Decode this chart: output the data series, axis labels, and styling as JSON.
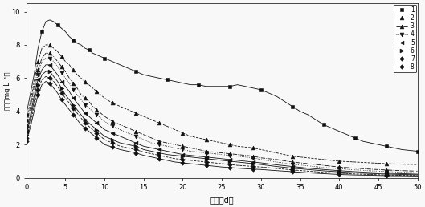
{
  "title": "",
  "xlabel": "时间（d）",
  "ylabel": "浓度（mg·L⁻¹）",
  "xlim": [
    0,
    50
  ],
  "ylim": [
    0,
    10.5
  ],
  "xticks": [
    0,
    5,
    10,
    15,
    20,
    25,
    30,
    35,
    40,
    45,
    50
  ],
  "yticks": [
    0,
    2,
    4,
    6,
    8,
    10
  ],
  "background": "#f8f8f8",
  "series": [
    {
      "label": "1",
      "marker": "s",
      "linestyle": "-",
      "color": "#111111",
      "markersize": 3.5,
      "linewidth": 0.6,
      "x": [
        0,
        0.5,
        1,
        1.5,
        2,
        2.5,
        3,
        3.5,
        4,
        4.5,
        5,
        5.5,
        6,
        6.5,
        7,
        7.5,
        8,
        8.5,
        9,
        9.5,
        10,
        11,
        12,
        13,
        14,
        15,
        16,
        17,
        18,
        19,
        20,
        21,
        22,
        23,
        24,
        25,
        26,
        27,
        28,
        29,
        30,
        31,
        32,
        33,
        34,
        35,
        36,
        37,
        38,
        39,
        40,
        41,
        42,
        43,
        44,
        45,
        46,
        47,
        48,
        49,
        50
      ],
      "y": [
        3.8,
        5.0,
        6.2,
        7.8,
        8.8,
        9.4,
        9.5,
        9.4,
        9.2,
        9.0,
        8.8,
        8.5,
        8.3,
        8.1,
        8.0,
        7.8,
        7.7,
        7.5,
        7.4,
        7.3,
        7.2,
        7.0,
        6.8,
        6.6,
        6.4,
        6.2,
        6.1,
        6.0,
        5.9,
        5.8,
        5.7,
        5.6,
        5.6,
        5.5,
        5.5,
        5.5,
        5.5,
        5.6,
        5.5,
        5.4,
        5.3,
        5.1,
        4.9,
        4.6,
        4.3,
        4.0,
        3.8,
        3.5,
        3.2,
        3.0,
        2.8,
        2.6,
        2.4,
        2.2,
        2.1,
        2.0,
        1.9,
        1.8,
        1.7,
        1.65,
        1.6
      ]
    },
    {
      "label": "2",
      "marker": "^",
      "linestyle": "--",
      "color": "#111111",
      "markersize": 3.5,
      "linewidth": 0.6,
      "x": [
        0,
        0.5,
        1,
        1.5,
        2,
        2.5,
        3,
        3.5,
        4,
        4.5,
        5,
        5.5,
        6,
        6.5,
        7,
        7.5,
        8,
        8.5,
        9,
        9.5,
        10,
        11,
        12,
        13,
        14,
        15,
        16,
        17,
        18,
        19,
        20,
        21,
        22,
        23,
        24,
        25,
        26,
        27,
        28,
        29,
        30,
        32,
        34,
        36,
        38,
        40,
        42,
        44,
        46,
        48,
        50
      ],
      "y": [
        3.5,
        4.5,
        5.8,
        7.0,
        7.8,
        8.0,
        8.0,
        7.8,
        7.6,
        7.3,
        7.0,
        6.8,
        6.5,
        6.2,
        6.0,
        5.8,
        5.6,
        5.4,
        5.2,
        5.0,
        4.8,
        4.5,
        4.3,
        4.1,
        3.9,
        3.7,
        3.5,
        3.3,
        3.1,
        2.9,
        2.7,
        2.5,
        2.4,
        2.3,
        2.2,
        2.1,
        2.0,
        1.9,
        1.85,
        1.8,
        1.7,
        1.5,
        1.3,
        1.2,
        1.1,
        1.0,
        0.95,
        0.9,
        0.85,
        0.82,
        0.8
      ]
    },
    {
      "label": "3",
      "marker": "^",
      "linestyle": "-.",
      "color": "#111111",
      "markersize": 3.5,
      "linewidth": 0.6,
      "x": [
        0,
        0.5,
        1,
        1.5,
        2,
        2.5,
        3,
        3.5,
        4,
        4.5,
        5,
        5.5,
        6,
        6.5,
        7,
        7.5,
        8,
        8.5,
        9,
        9.5,
        10,
        11,
        12,
        13,
        14,
        15,
        16,
        17,
        18,
        19,
        20,
        21,
        22,
        23,
        24,
        25,
        26,
        27,
        28,
        29,
        30,
        32,
        34,
        36,
        38,
        40,
        42,
        44,
        46,
        48,
        50
      ],
      "y": [
        3.2,
        4.2,
        5.5,
        6.5,
        7.2,
        7.5,
        7.5,
        7.3,
        7.0,
        6.7,
        6.4,
        6.0,
        5.7,
        5.4,
        5.0,
        4.8,
        4.6,
        4.3,
        4.1,
        3.9,
        3.7,
        3.4,
        3.2,
        3.0,
        2.8,
        2.6,
        2.4,
        2.2,
        2.1,
        2.0,
        1.9,
        1.8,
        1.7,
        1.6,
        1.55,
        1.5,
        1.45,
        1.4,
        1.35,
        1.3,
        1.2,
        1.1,
        0.95,
        0.85,
        0.75,
        0.65,
        0.58,
        0.52,
        0.47,
        0.43,
        0.4
      ]
    },
    {
      "label": "4",
      "marker": "v",
      "linestyle": ":",
      "color": "#111111",
      "markersize": 3.5,
      "linewidth": 0.6,
      "x": [
        0,
        0.5,
        1,
        1.5,
        2,
        2.5,
        3,
        3.5,
        4,
        4.5,
        5,
        5.5,
        6,
        6.5,
        7,
        7.5,
        8,
        8.5,
        9,
        9.5,
        10,
        11,
        12,
        13,
        14,
        15,
        16,
        17,
        18,
        19,
        20,
        21,
        22,
        23,
        24,
        25,
        26,
        27,
        28,
        29,
        30,
        32,
        34,
        36,
        38,
        40,
        42,
        44,
        46,
        48,
        50
      ],
      "y": [
        3.0,
        4.0,
        5.2,
        6.2,
        7.0,
        7.2,
        7.2,
        7.0,
        6.7,
        6.3,
        6.0,
        5.7,
        5.3,
        5.0,
        4.7,
        4.4,
        4.2,
        4.0,
        3.8,
        3.6,
        3.4,
        3.1,
        2.9,
        2.7,
        2.5,
        2.3,
        2.1,
        2.0,
        1.9,
        1.8,
        1.7,
        1.6,
        1.55,
        1.5,
        1.45,
        1.4,
        1.35,
        1.3,
        1.25,
        1.2,
        1.1,
        0.95,
        0.82,
        0.72,
        0.62,
        0.55,
        0.48,
        0.42,
        0.38,
        0.34,
        0.3
      ]
    },
    {
      "label": "5",
      "marker": "<",
      "linestyle": "-",
      "color": "#111111",
      "markersize": 3.5,
      "linewidth": 0.6,
      "x": [
        0,
        0.5,
        1,
        1.5,
        2,
        2.5,
        3,
        3.5,
        4,
        4.5,
        5,
        5.5,
        6,
        6.5,
        7,
        7.5,
        8,
        8.5,
        9,
        9.5,
        10,
        11,
        12,
        13,
        14,
        15,
        16,
        17,
        18,
        19,
        20,
        21,
        22,
        23,
        24,
        25,
        26,
        27,
        28,
        29,
        30,
        32,
        34,
        36,
        38,
        40,
        42,
        44,
        46,
        48,
        50
      ],
      "y": [
        2.8,
        3.7,
        4.9,
        5.9,
        6.5,
        6.8,
        6.8,
        6.5,
        6.2,
        5.8,
        5.5,
        5.2,
        4.8,
        4.5,
        4.2,
        3.9,
        3.7,
        3.5,
        3.3,
        3.1,
        2.9,
        2.7,
        2.5,
        2.3,
        2.1,
        1.9,
        1.8,
        1.7,
        1.6,
        1.5,
        1.4,
        1.35,
        1.3,
        1.25,
        1.2,
        1.15,
        1.1,
        1.05,
        1.0,
        0.95,
        0.9,
        0.78,
        0.68,
        0.58,
        0.5,
        0.43,
        0.37,
        0.32,
        0.28,
        0.25,
        0.22
      ]
    },
    {
      "label": "6",
      "marker": ">",
      "linestyle": "-",
      "color": "#111111",
      "markersize": 3.5,
      "linewidth": 0.6,
      "x": [
        0,
        0.5,
        1,
        1.5,
        2,
        2.5,
        3,
        3.5,
        4,
        4.5,
        5,
        5.5,
        6,
        6.5,
        7,
        7.5,
        8,
        8.5,
        9,
        9.5,
        10,
        11,
        12,
        13,
        14,
        15,
        16,
        17,
        18,
        19,
        20,
        21,
        22,
        23,
        24,
        25,
        26,
        27,
        28,
        29,
        30,
        32,
        34,
        36,
        38,
        40,
        42,
        44,
        46,
        48,
        50
      ],
      "y": [
        2.6,
        3.5,
        4.6,
        5.6,
        6.2,
        6.4,
        6.4,
        6.1,
        5.8,
        5.4,
        5.0,
        4.7,
        4.4,
        4.1,
        3.8,
        3.5,
        3.3,
        3.1,
        2.9,
        2.7,
        2.5,
        2.3,
        2.1,
        2.0,
        1.9,
        1.7,
        1.6,
        1.5,
        1.4,
        1.35,
        1.3,
        1.25,
        1.2,
        1.15,
        1.1,
        1.05,
        1.0,
        0.95,
        0.9,
        0.85,
        0.8,
        0.68,
        0.58,
        0.5,
        0.42,
        0.36,
        0.3,
        0.26,
        0.23,
        0.2,
        0.18
      ]
    },
    {
      "label": "7",
      "marker": "D",
      "linestyle": "--",
      "color": "#111111",
      "markersize": 2.8,
      "linewidth": 0.6,
      "x": [
        0,
        0.5,
        1,
        1.5,
        2,
        2.5,
        3,
        3.5,
        4,
        4.5,
        5,
        5.5,
        6,
        6.5,
        7,
        7.5,
        8,
        8.5,
        9,
        9.5,
        10,
        11,
        12,
        13,
        14,
        15,
        16,
        17,
        18,
        19,
        20,
        21,
        22,
        23,
        24,
        25,
        26,
        27,
        28,
        29,
        30,
        32,
        34,
        36,
        38,
        40,
        42,
        44,
        46,
        48,
        50
      ],
      "y": [
        2.4,
        3.2,
        4.3,
        5.3,
        5.9,
        6.1,
        6.0,
        5.8,
        5.5,
        5.1,
        4.8,
        4.5,
        4.2,
        3.9,
        3.6,
        3.3,
        3.1,
        2.9,
        2.7,
        2.5,
        2.3,
        2.1,
        1.9,
        1.8,
        1.7,
        1.55,
        1.45,
        1.35,
        1.25,
        1.15,
        1.1,
        1.05,
        1.0,
        0.95,
        0.9,
        0.85,
        0.8,
        0.75,
        0.72,
        0.68,
        0.65,
        0.56,
        0.48,
        0.4,
        0.33,
        0.28,
        0.23,
        0.2,
        0.17,
        0.15,
        0.14
      ]
    },
    {
      "label": "8",
      "marker": "D",
      "linestyle": "-",
      "color": "#111111",
      "markersize": 2.8,
      "linewidth": 0.6,
      "x": [
        0,
        0.5,
        1,
        1.5,
        2,
        2.5,
        3,
        3.5,
        4,
        4.5,
        5,
        5.5,
        6,
        6.5,
        7,
        7.5,
        8,
        8.5,
        9,
        9.5,
        10,
        11,
        12,
        13,
        14,
        15,
        16,
        17,
        18,
        19,
        20,
        21,
        22,
        23,
        24,
        25,
        26,
        27,
        28,
        29,
        30,
        32,
        34,
        36,
        38,
        40,
        42,
        44,
        46,
        48,
        50
      ],
      "y": [
        2.2,
        3.0,
        4.0,
        5.0,
        5.6,
        5.8,
        5.7,
        5.4,
        5.1,
        4.7,
        4.4,
        4.1,
        3.8,
        3.5,
        3.2,
        3.0,
        2.8,
        2.6,
        2.4,
        2.2,
        2.0,
        1.85,
        1.7,
        1.6,
        1.5,
        1.35,
        1.25,
        1.15,
        1.05,
        0.95,
        0.9,
        0.85,
        0.8,
        0.75,
        0.7,
        0.65,
        0.62,
        0.58,
        0.55,
        0.52,
        0.5,
        0.43,
        0.37,
        0.3,
        0.25,
        0.2,
        0.17,
        0.15,
        0.13,
        0.12,
        0.11
      ]
    }
  ]
}
